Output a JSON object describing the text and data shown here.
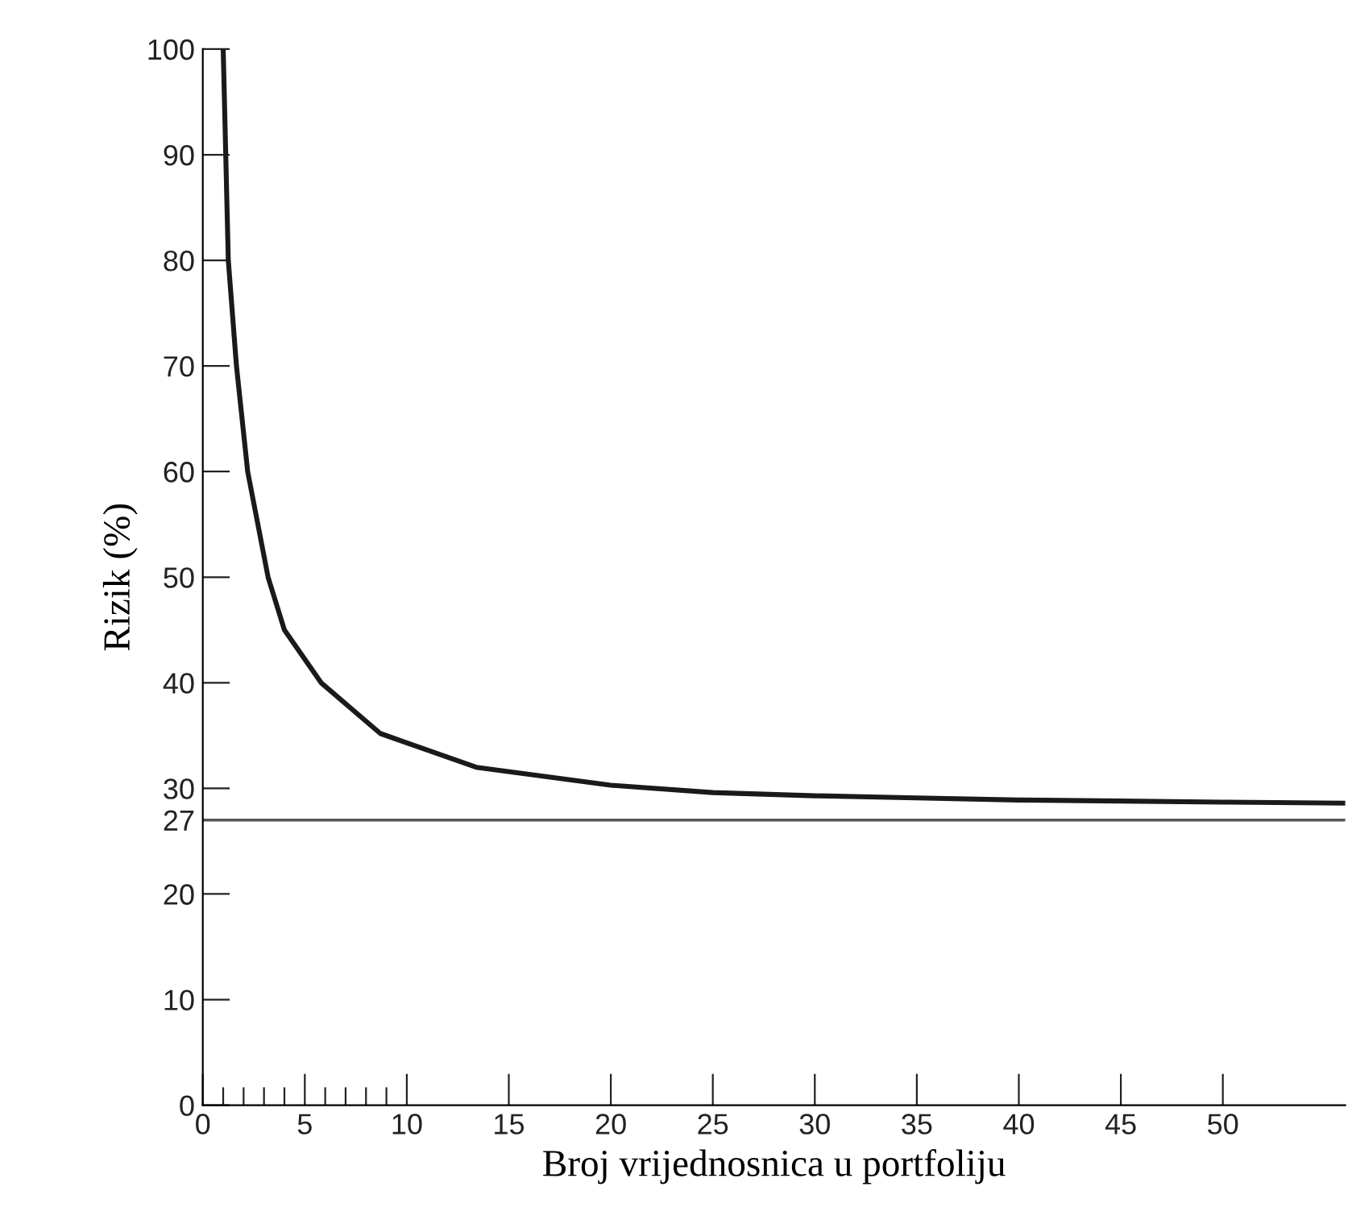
{
  "chart_data": {
    "type": "line",
    "xlabel": "Broj vrijednosnica u portfoliju",
    "ylabel": "Rizik (%)",
    "series": [
      {
        "color": "#1a1a1a",
        "x": [
          1,
          1.25,
          1.65,
          2.2,
          3.2,
          4,
          5.8,
          8.7,
          13.4,
          20,
          25,
          30,
          35,
          40,
          45,
          50,
          56
        ],
        "values": [
          100,
          80,
          70,
          60,
          50,
          45,
          40,
          35.2,
          32,
          30.3,
          29.6,
          29.3,
          29.1,
          28.9,
          28.8,
          28.7,
          28.6
        ]
      }
    ],
    "xlim": [
      0,
      56
    ],
    "ylim": [
      0,
      100
    ],
    "xticks": [
      0,
      {
        "value": 1,
        "label": null
      },
      {
        "value": 2,
        "label": null
      },
      {
        "value": 3,
        "label": null
      },
      {
        "value": 4,
        "label": null
      },
      5,
      {
        "value": 6,
        "label": null
      },
      {
        "value": 7,
        "label": null
      },
      {
        "value": 8,
        "label": null
      },
      {
        "value": 9,
        "label": null
      },
      10,
      15,
      20,
      25,
      30,
      35,
      40,
      45,
      50
    ],
    "yticks": [
      0,
      10,
      20,
      27,
      30,
      40,
      50,
      60,
      70,
      80,
      90,
      100
    ],
    "ref_lines": [
      {
        "axis": "y",
        "value": 27,
        "color": "#555555"
      }
    ],
    "grid": false,
    "legend": false,
    "marker": "none",
    "line_style": "solid"
  }
}
